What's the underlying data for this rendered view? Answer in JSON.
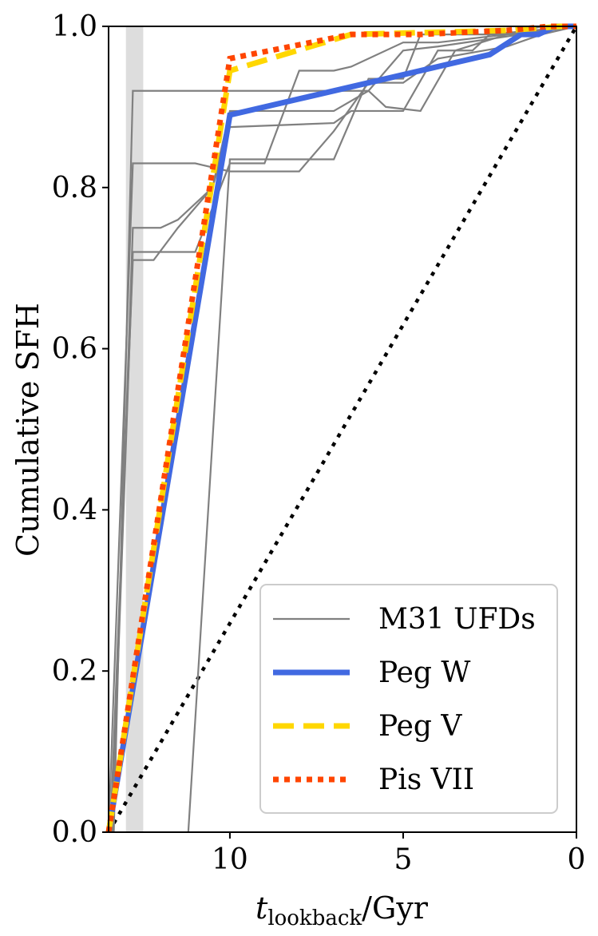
{
  "chart_data": {
    "type": "line",
    "xlabel_main": "t",
    "xlabel_sub": "lookback",
    "xlabel_unit": "/Gyr",
    "ylabel": "Cumulative SFH",
    "xlim": [
      13.5,
      0
    ],
    "ylim": [
      0,
      1
    ],
    "x_ticks": [
      10,
      5,
      0
    ],
    "x_tick_labels": [
      "10",
      "5",
      "0"
    ],
    "y_ticks": [
      0,
      0.2,
      0.4,
      0.6,
      0.8,
      1.0
    ],
    "y_tick_labels": [
      "0.0",
      "0.2",
      "0.4",
      "0.6",
      "0.8",
      "1.0"
    ],
    "reionization_band": [
      13.0,
      12.5
    ],
    "reference_line": {
      "x": [
        13.5,
        0
      ],
      "y": [
        0,
        1
      ],
      "color": "#000000"
    },
    "legend_position": "bottom-right",
    "series": [
      {
        "name": "M31 UFDs",
        "color": "#808080",
        "style": "solid",
        "role": "ufd",
        "x": [
          11.2,
          10.0,
          7.0,
          6.0,
          5.0,
          4.5,
          1.0,
          0.5,
          0.0
        ],
        "y": [
          0.0,
          0.835,
          0.835,
          0.935,
          0.935,
          0.99,
          0.99,
          1.0,
          1.0
        ]
      },
      {
        "name": "",
        "color": "#808080",
        "style": "solid",
        "role": "ufd",
        "x": [
          13.4,
          12.8,
          11.0,
          10.0,
          9.0,
          8.0,
          7.0,
          6.5,
          5.0,
          4.0,
          2.0,
          1.0,
          0.0
        ],
        "y": [
          0.0,
          0.72,
          0.72,
          0.83,
          0.83,
          0.945,
          0.945,
          0.95,
          0.98,
          0.98,
          0.99,
          1.0,
          1.0
        ]
      },
      {
        "name": "",
        "color": "#808080",
        "style": "solid",
        "role": "ufd",
        "x": [
          13.45,
          12.8,
          12.2,
          11.5,
          10.5,
          10.0,
          7.0,
          6.5,
          5.0,
          4.0,
          3.0,
          2.5,
          0.0
        ],
        "y": [
          0.0,
          0.71,
          0.71,
          0.75,
          0.8,
          0.875,
          0.88,
          0.895,
          0.895,
          0.97,
          0.97,
          0.99,
          1.0
        ]
      },
      {
        "name": "",
        "color": "#808080",
        "style": "solid",
        "role": "ufd",
        "x": [
          13.5,
          12.8,
          11.0,
          10.0,
          8.0,
          7.0,
          6.0,
          5.0,
          4.0,
          2.0,
          1.0,
          0.0
        ],
        "y": [
          0.0,
          0.83,
          0.83,
          0.82,
          0.82,
          0.87,
          0.93,
          0.93,
          0.96,
          0.975,
          0.99,
          1.0
        ]
      },
      {
        "name": "",
        "color": "#808080",
        "style": "solid",
        "role": "ufd",
        "x": [
          13.35,
          12.8,
          6.0,
          5.5,
          4.5,
          3.5,
          2.0,
          0.0
        ],
        "y": [
          0.0,
          0.92,
          0.92,
          0.9,
          0.895,
          0.97,
          0.99,
          1.0
        ]
      },
      {
        "name": "",
        "color": "#808080",
        "style": "solid",
        "role": "ufd",
        "x": [
          13.4,
          12.8,
          12.0,
          11.5,
          10.5,
          10.0,
          7.0,
          6.0,
          5.0,
          4.0,
          0.0
        ],
        "y": [
          0.0,
          0.75,
          0.75,
          0.76,
          0.8,
          0.895,
          0.895,
          0.92,
          0.97,
          0.975,
          1.0
        ]
      },
      {
        "name": "Peg W",
        "color": "#4169e1",
        "style": "solid",
        "role": "main",
        "x": [
          13.5,
          10.0,
          2.5,
          1.6,
          1.1,
          0.6,
          0.0
        ],
        "y": [
          0.0,
          0.89,
          0.965,
          0.99,
          0.99,
          1.0,
          1.0
        ]
      },
      {
        "name": "Peg V",
        "color": "#ffd700",
        "style": "dashed",
        "role": "main",
        "x": [
          13.5,
          10.0,
          6.5,
          2.0,
          1.0,
          0.5,
          0.0
        ],
        "y": [
          0.0,
          0.945,
          0.99,
          0.995,
          0.998,
          1.0,
          1.0
        ]
      },
      {
        "name": "Pis VII",
        "color": "#ff4500",
        "style": "dotted",
        "role": "main",
        "x": [
          13.5,
          10.0,
          6.5,
          4.5,
          2.0,
          0.8,
          0.0
        ],
        "y": [
          0.0,
          0.96,
          0.99,
          0.99,
          0.995,
          1.0,
          1.0
        ]
      }
    ]
  }
}
